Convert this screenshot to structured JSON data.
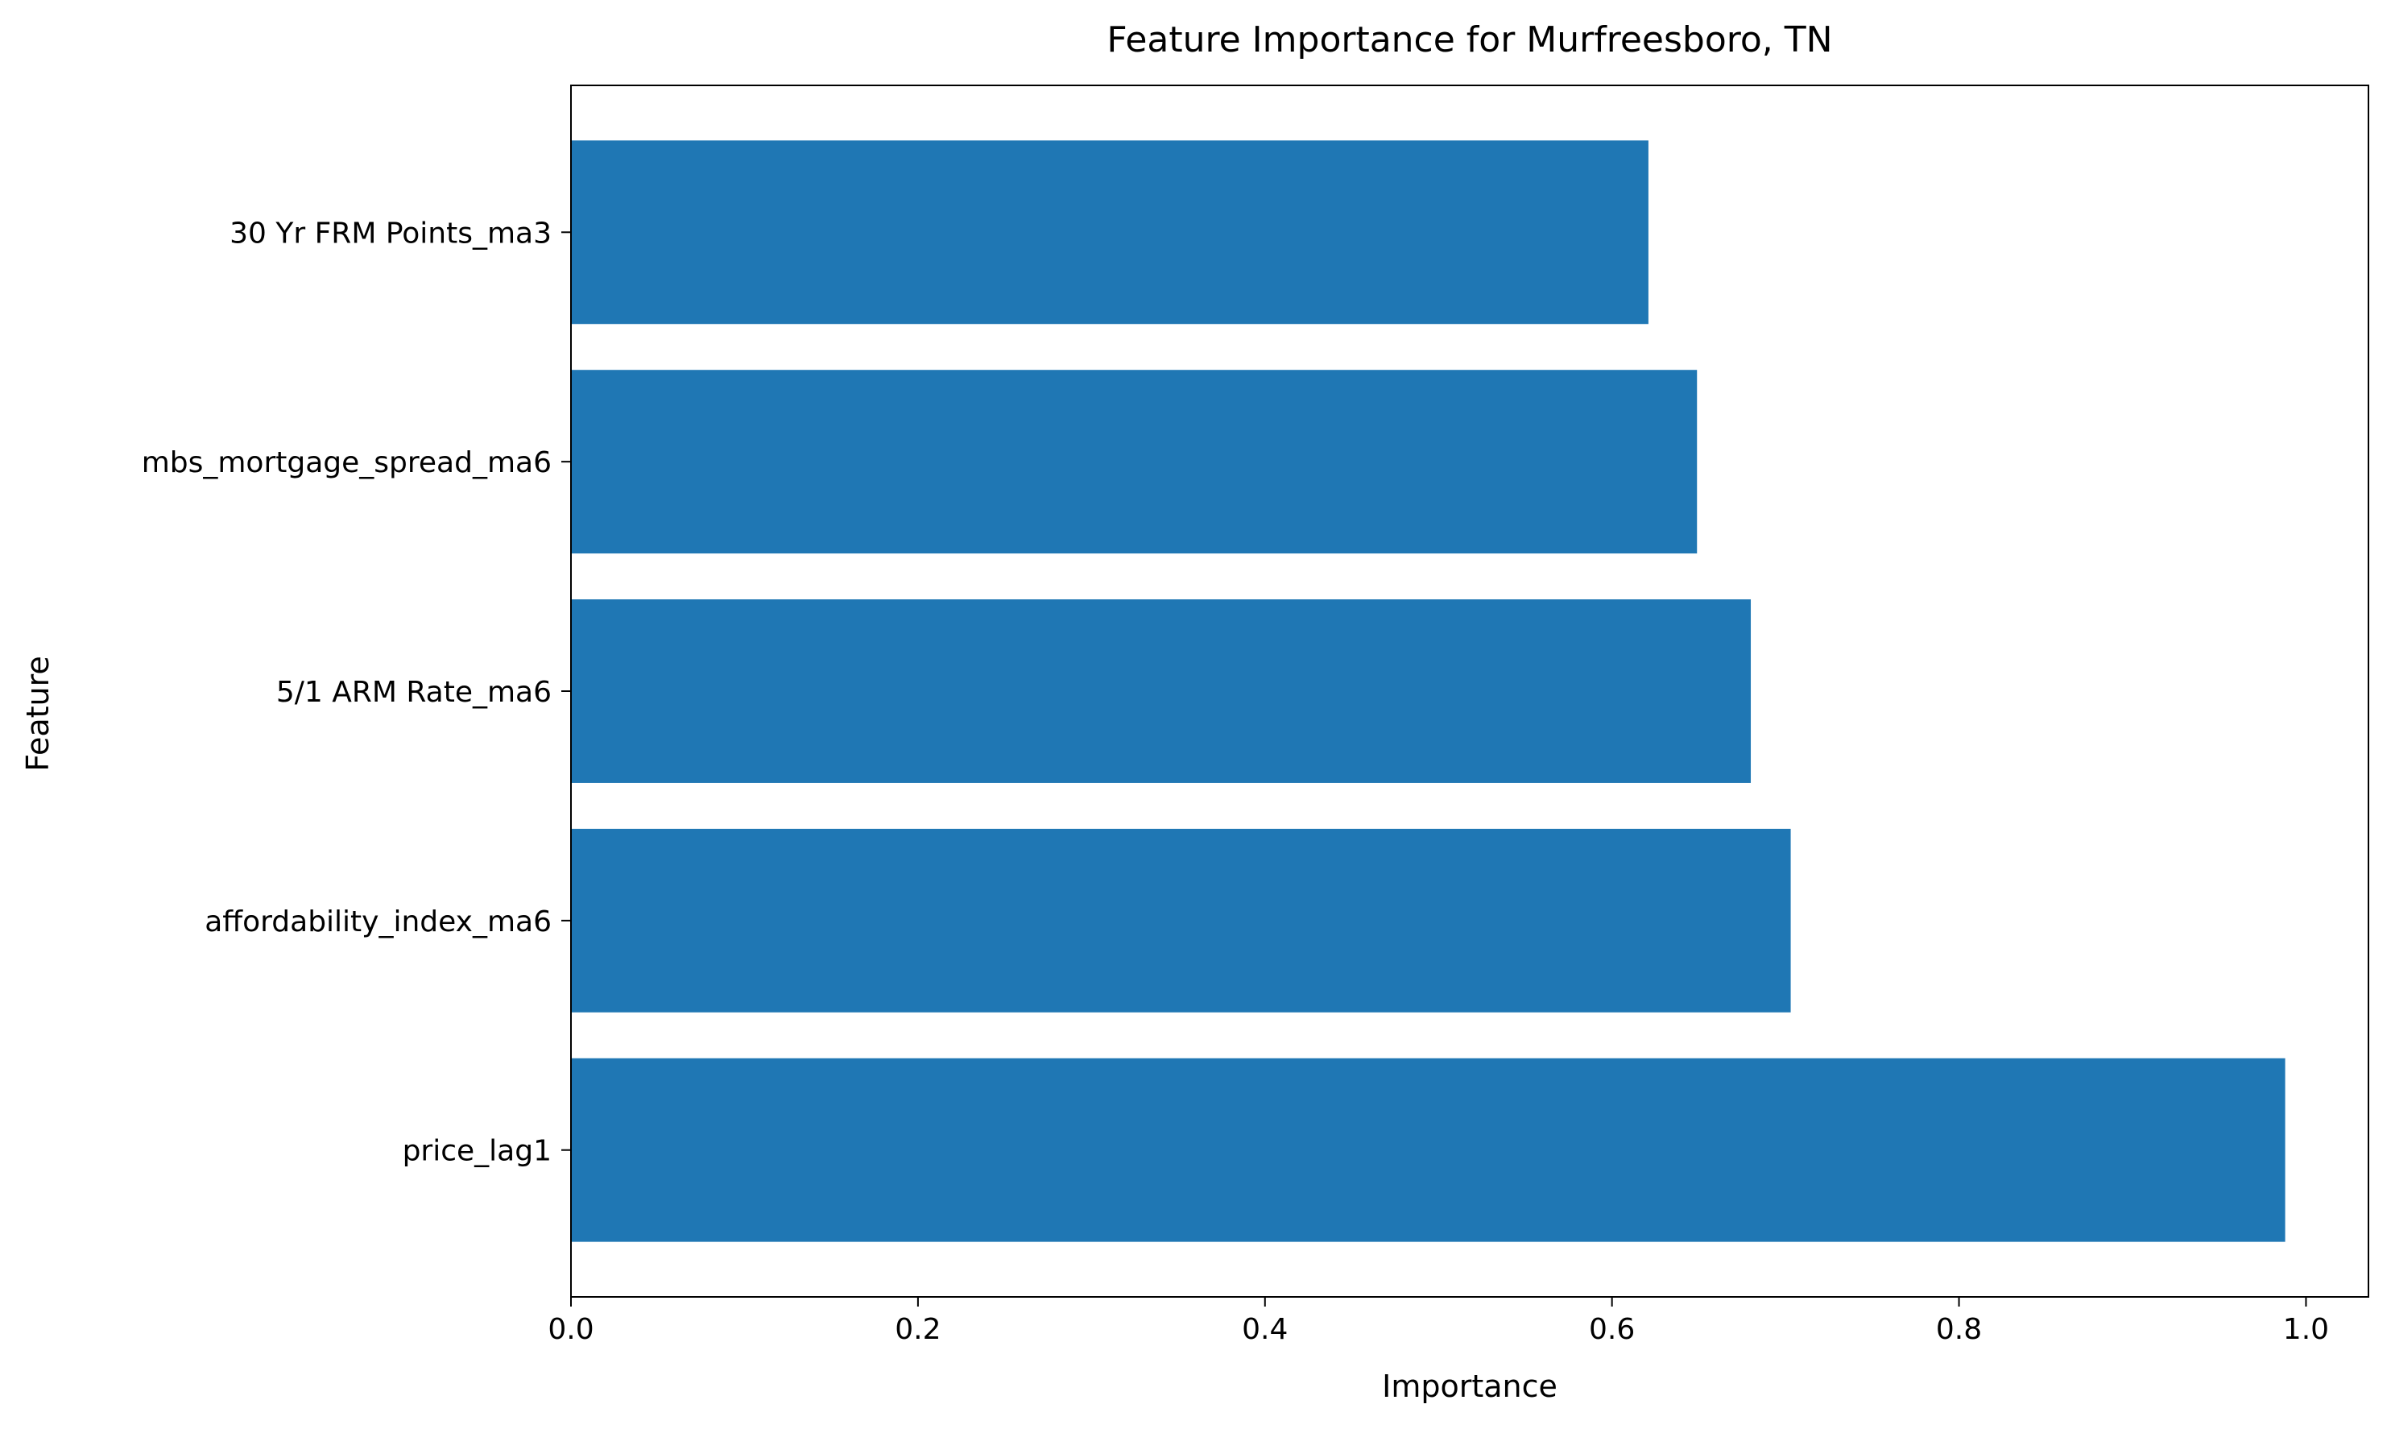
{
  "chart_data": {
    "type": "bar",
    "orientation": "horizontal",
    "title": "Feature Importance for Murfreesboro, TN",
    "xlabel": "Importance",
    "ylabel": "Feature",
    "categories": [
      "price_lag1",
      "affordability_index_ma6",
      "5/1 ARM Rate_ma6",
      "mbs_mortgage_spread_ma6",
      "30 Yr FRM Points_ma3"
    ],
    "values": [
      0.988,
      0.703,
      0.68,
      0.649,
      0.621
    ],
    "xlim": [
      0,
      1.036
    ],
    "xticks": [
      0.0,
      0.2,
      0.4,
      0.6,
      0.8,
      1.0
    ],
    "xtick_labels": [
      "0.0",
      "0.2",
      "0.4",
      "0.6",
      "0.8",
      "1.0"
    ],
    "bar_color": "#1f77b4",
    "grid": false,
    "legend": "none"
  }
}
